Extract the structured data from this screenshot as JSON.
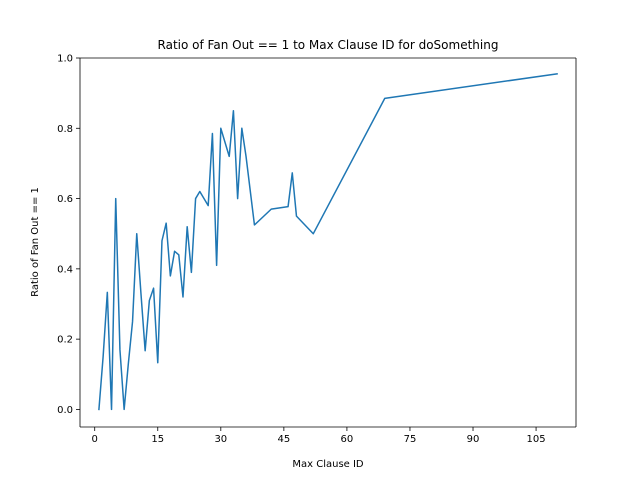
{
  "chart_data": {
    "type": "line",
    "title": "Ratio of Fan Out == 1 to Max Clause ID for doSomething",
    "xlabel": "Max Clause ID",
    "ylabel": "Ratio of Fan Out == 1",
    "xlim": [
      -3.5,
      114.5
    ],
    "ylim": [
      -0.05,
      1.0
    ],
    "xticks": [
      0,
      15,
      30,
      45,
      60,
      75,
      90,
      105
    ],
    "yticks": [
      0.0,
      0.2,
      0.4,
      0.6,
      0.8,
      1.0
    ],
    "xtick_labels": [
      "0",
      "15",
      "30",
      "45",
      "60",
      "75",
      "90",
      "105"
    ],
    "ytick_labels": [
      "0.0",
      "0.2",
      "0.4",
      "0.6",
      "0.8",
      "1.0"
    ],
    "grid": false,
    "legend": "none",
    "series": [
      {
        "color": "#1f77b4",
        "x": [
          1,
          2,
          3,
          4,
          5,
          6,
          7,
          8,
          9,
          10,
          11,
          12,
          13,
          14,
          15,
          16,
          17,
          18,
          19,
          20,
          21,
          22,
          23,
          24,
          25,
          27,
          28,
          29,
          30,
          32,
          33,
          34,
          35,
          36,
          38,
          42,
          46,
          47,
          48,
          52,
          69,
          110
        ],
        "y": [
          0.0,
          0.15,
          0.333,
          0.0,
          0.6,
          0.17,
          0.0,
          0.13,
          0.25,
          0.5,
          0.33,
          0.167,
          0.31,
          0.345,
          0.133,
          0.48,
          0.53,
          0.38,
          0.45,
          0.44,
          0.32,
          0.52,
          0.39,
          0.6,
          0.62,
          0.58,
          0.785,
          0.41,
          0.8,
          0.72,
          0.85,
          0.6,
          0.8,
          0.72,
          0.525,
          0.57,
          0.577,
          0.673,
          0.55,
          0.5,
          0.885,
          0.955
        ]
      }
    ]
  }
}
